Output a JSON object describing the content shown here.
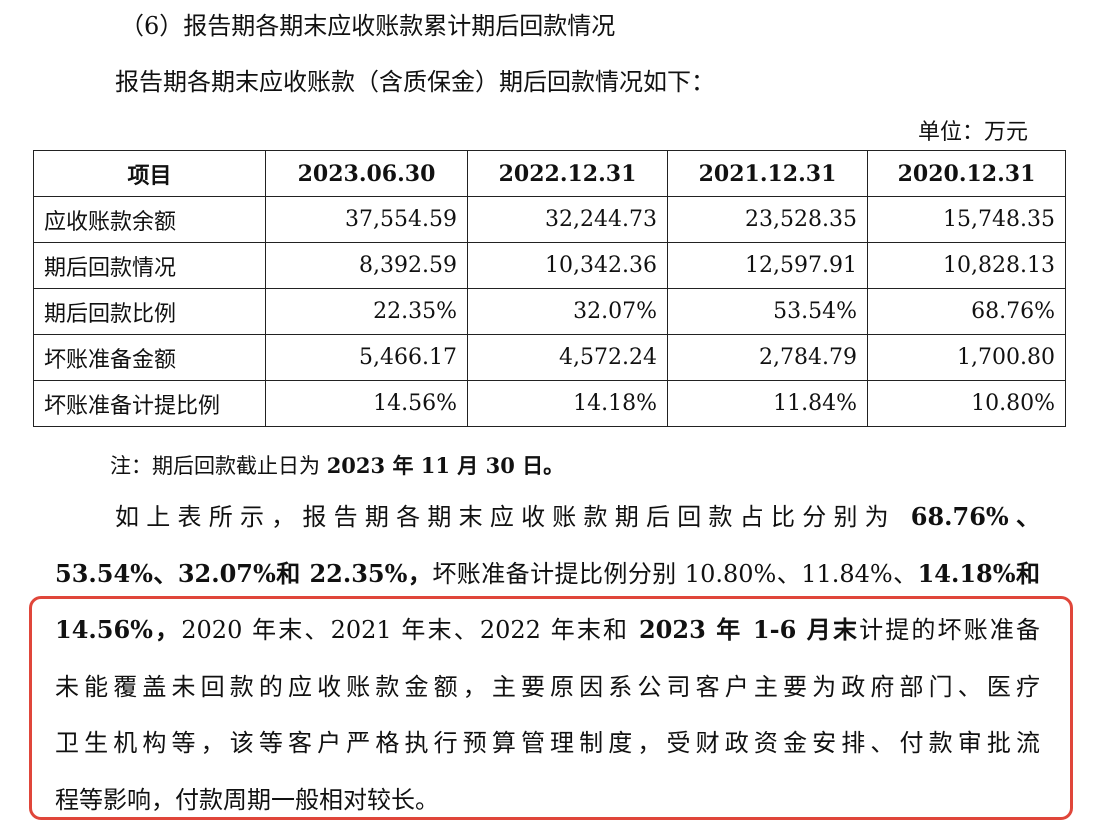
{
  "heading": "（6）报告期各期末应收账款累计期后回款情况",
  "intro": "报告期各期末应收账款（含质保金）期后回款情况如下：",
  "unit": "单位：万元",
  "table": {
    "header": [
      "项目",
      "2023.06.30",
      "2022.12.31",
      "2021.12.31",
      "2020.12.31"
    ],
    "rows": [
      [
        "应收账款余额",
        "37,554.59",
        "32,244.73",
        "23,528.35",
        "15,748.35"
      ],
      [
        "期后回款情况",
        "8,392.59",
        "10,342.36",
        "12,597.91",
        "10,828.13"
      ],
      [
        "期后回款比例",
        "22.35%",
        "32.07%",
        "53.54%",
        "68.76%"
      ],
      [
        "坏账准备金额",
        "5,466.17",
        "4,572.24",
        "2,784.79",
        "1,700.80"
      ],
      [
        "坏账准备计提比例",
        "14.56%",
        "14.18%",
        "11.84%",
        "10.80%"
      ]
    ]
  },
  "note": [
    {
      "text": "注：期后回款截止日为 ",
      "bold": false
    },
    {
      "text": "2023 年 11 月 30 日。",
      "bold": true
    }
  ],
  "paragraph": [
    [
      {
        "text": "如上表所示，报告期各期末应收账款期后回款占比分别为 ",
        "bold": false
      },
      {
        "text": "68.76%、",
        "bold": true
      }
    ],
    [
      {
        "text": "53.54%、32.07%和 22.35%，",
        "bold": true
      },
      {
        "text": "坏账准备计提比例分别 10.80%、11.84%、",
        "bold": false
      },
      {
        "text": "14.18%和",
        "bold": true
      }
    ],
    [
      {
        "text": "14.56%，",
        "bold": true
      },
      {
        "text": "2020 年末、2021 年末、2022 年末和 ",
        "bold": false
      },
      {
        "text": "2023 年 1-6 月末",
        "bold": true
      },
      {
        "text": "计提的坏账准备",
        "bold": false
      }
    ],
    [
      {
        "text": "未能覆盖未回款的应收账款金额，主要原因系公司客户主要为政府部门、医疗",
        "bold": false
      }
    ],
    [
      {
        "text": "卫生机构等，该等客户严格执行预算管理制度，受财政资金安排、付款审批流",
        "bold": false
      }
    ],
    [
      {
        "text": "程等影响，付款周期一般相对较长。",
        "bold": false
      }
    ]
  ]
}
